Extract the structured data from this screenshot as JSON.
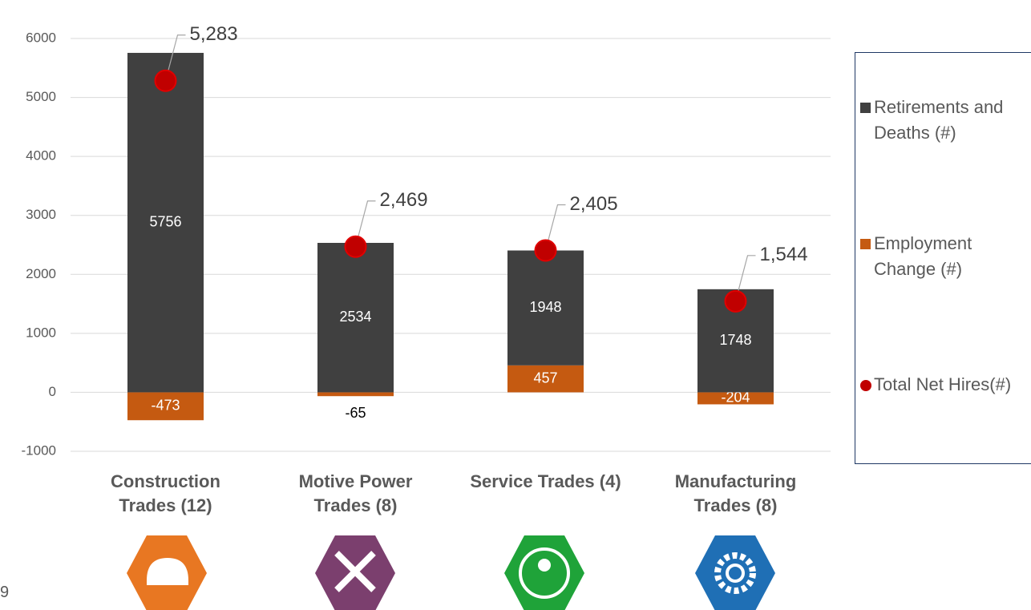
{
  "chart_data": {
    "type": "bar",
    "stacked": true,
    "categories": [
      [
        "Construction",
        "Trades (12)"
      ],
      [
        "Motive Power",
        "Trades (8)"
      ],
      [
        "Service Trades (4)"
      ],
      [
        "Manufacturing",
        "Trades (8)"
      ]
    ],
    "series": [
      {
        "name": "Retirements and Deaths (#)",
        "color": "#404040",
        "values": [
          5756,
          2534,
          1948,
          1748
        ]
      },
      {
        "name": "Employment Change (#)",
        "color": "#c55a11",
        "values": [
          -473,
          -65,
          457,
          -204
        ]
      },
      {
        "name": "Total Net Hires(#)",
        "color": "#c00000",
        "type": "scatter",
        "values": [
          5283,
          2469,
          2405,
          1544
        ],
        "value_labels": [
          "5,283",
          "2,469",
          "2,405",
          "1,544"
        ]
      }
    ],
    "ylim": [
      -1000,
      6000
    ],
    "yticks": [
      -1000,
      0,
      1000,
      2000,
      3000,
      4000,
      5000,
      6000
    ],
    "grid": true,
    "legend": "right"
  },
  "page_number": "9"
}
